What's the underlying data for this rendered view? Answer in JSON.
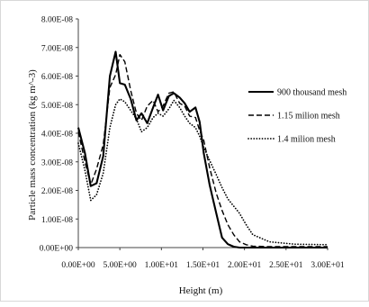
{
  "chart_data": {
    "type": "line",
    "title": "",
    "xlabel": "Height (m)",
    "ylabel": "Particle mass concentration (kg m^-3)",
    "xlim": [
      0,
      30
    ],
    "ylim": [
      0,
      8e-08
    ],
    "x_ticks": [
      0,
      5,
      10,
      15,
      20,
      25,
      30
    ],
    "x_tick_labels": [
      "0.00E+00",
      "5.00E+00",
      "1.00E+01",
      "1.50E+01",
      "2.00E+01",
      "2.50E+01",
      "3.00E+01"
    ],
    "y_ticks": [
      0,
      1e-08,
      2e-08,
      3e-08,
      4e-08,
      5e-08,
      6e-08,
      7e-08,
      8e-08
    ],
    "y_tick_labels": [
      "0.00E+00",
      "1.00E-08",
      "2.00E-08",
      "3.00E-08",
      "4.00E-08",
      "5.00E-08",
      "6.00E-08",
      "7.00E-08",
      "8.00E-08"
    ],
    "grid": false,
    "legend_position": "right",
    "series": [
      {
        "name": "900 thousand mesh",
        "style": "solid",
        "x": [
          0,
          0.8,
          1.5,
          2.2,
          3.0,
          3.8,
          4.5,
          5.0,
          5.6,
          6.3,
          7.0,
          7.6,
          8.3,
          9.0,
          9.6,
          10.2,
          10.9,
          11.5,
          12.2,
          12.8,
          13.4,
          14.1,
          14.6,
          15.1,
          15.8,
          16.6,
          17.3,
          18.0,
          18.7,
          19.4,
          20.2,
          21,
          23,
          26,
          30
        ],
        "y": [
          4.2e-08,
          3.3e-08,
          2.15e-08,
          2.25e-08,
          3.2e-08,
          6e-08,
          6.85e-08,
          5.75e-08,
          5.7e-08,
          5.2e-08,
          4.45e-08,
          4.7e-08,
          4.35e-08,
          4.9e-08,
          5.35e-08,
          4.8e-08,
          5.3e-08,
          5.4e-08,
          5.25e-08,
          5.05e-08,
          4.75e-08,
          4.9e-08,
          4.4e-08,
          3.3e-08,
          2.2e-08,
          1.2e-08,
          3.5e-09,
          1.2e-09,
          3e-10,
          0,
          0,
          0,
          0,
          0,
          0
        ]
      },
      {
        "name": "1.15 milion mesh",
        "style": "dashed",
        "x": [
          0,
          0.8,
          1.5,
          2.2,
          3.0,
          3.8,
          4.5,
          5.0,
          5.6,
          6.3,
          7.0,
          7.6,
          8.3,
          9.0,
          9.6,
          10.2,
          10.9,
          11.5,
          12.2,
          12.8,
          13.4,
          14.1,
          14.6,
          15.1,
          15.8,
          16.6,
          17.3,
          18.0,
          18.7,
          19.4,
          20.2,
          21,
          23,
          26,
          30
        ],
        "y": [
          4.05e-08,
          3e-08,
          2.2e-08,
          2.75e-08,
          3.6e-08,
          5.6e-08,
          6.05e-08,
          6.75e-08,
          6.5e-08,
          5.5e-08,
          4.7e-08,
          4.45e-08,
          4.95e-08,
          5.15e-08,
          4.75e-08,
          4.95e-08,
          5.4e-08,
          5.45e-08,
          5.05e-08,
          4.95e-08,
          4.6e-08,
          4.55e-08,
          4.1e-08,
          3.75e-08,
          2.8e-08,
          1.9e-08,
          1.3e-08,
          8e-09,
          4.5e-09,
          2e-09,
          1e-09,
          5e-10,
          3e-10,
          3e-10,
          3e-10
        ]
      },
      {
        "name": "1.4 milion mesh",
        "style": "dotted",
        "x": [
          0,
          0.8,
          1.5,
          2.2,
          3.0,
          3.8,
          4.5,
          5.0,
          5.6,
          6.3,
          7.0,
          7.6,
          8.3,
          9.0,
          9.6,
          10.2,
          10.9,
          11.5,
          12.2,
          12.8,
          13.4,
          14.1,
          14.6,
          15.1,
          15.8,
          16.6,
          17.3,
          18.0,
          18.7,
          19.4,
          20.2,
          21,
          23,
          26,
          30
        ],
        "y": [
          3.65e-08,
          2.7e-08,
          1.65e-08,
          1.85e-08,
          2.6e-08,
          4.2e-08,
          5e-08,
          5.2e-08,
          5.1e-08,
          4.8e-08,
          4.5e-08,
          4.05e-08,
          4.2e-08,
          4.55e-08,
          4.7e-08,
          4.6e-08,
          4.85e-08,
          5.15e-08,
          4.9e-08,
          4.6e-08,
          4.35e-08,
          4.2e-08,
          3.9e-08,
          3.5e-08,
          3.05e-08,
          2.55e-08,
          2.1e-08,
          1.7e-08,
          1.45e-08,
          1.2e-08,
          8e-09,
          4.5e-09,
          2e-09,
          1.2e-09,
          1e-09
        ]
      }
    ]
  }
}
